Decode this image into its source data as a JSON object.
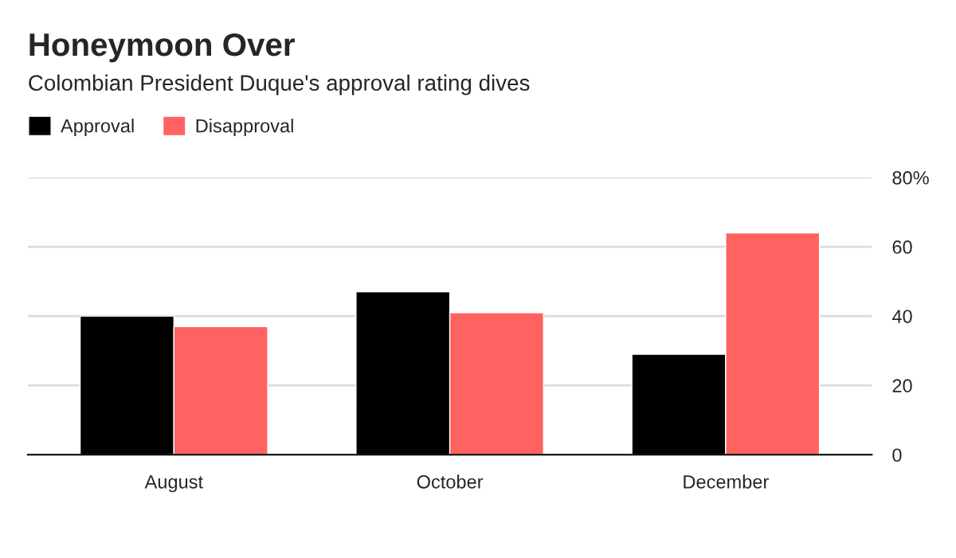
{
  "chart_data": {
    "type": "bar",
    "title": "Honeymoon Over",
    "subtitle": "Colombian President Duque's approval rating dives",
    "categories": [
      "August",
      "October",
      "December"
    ],
    "series": [
      {
        "name": "Approval",
        "color": "#000000",
        "values": [
          40,
          47,
          29
        ]
      },
      {
        "name": "Disapproval",
        "color": "#ff6361",
        "values": [
          37,
          41,
          64
        ]
      }
    ],
    "ylim": [
      0,
      80
    ],
    "yticks": [
      0,
      20,
      40,
      60,
      {
        "value": 80,
        "label": "80%"
      }
    ],
    "grid": "y",
    "legend": "top left"
  }
}
